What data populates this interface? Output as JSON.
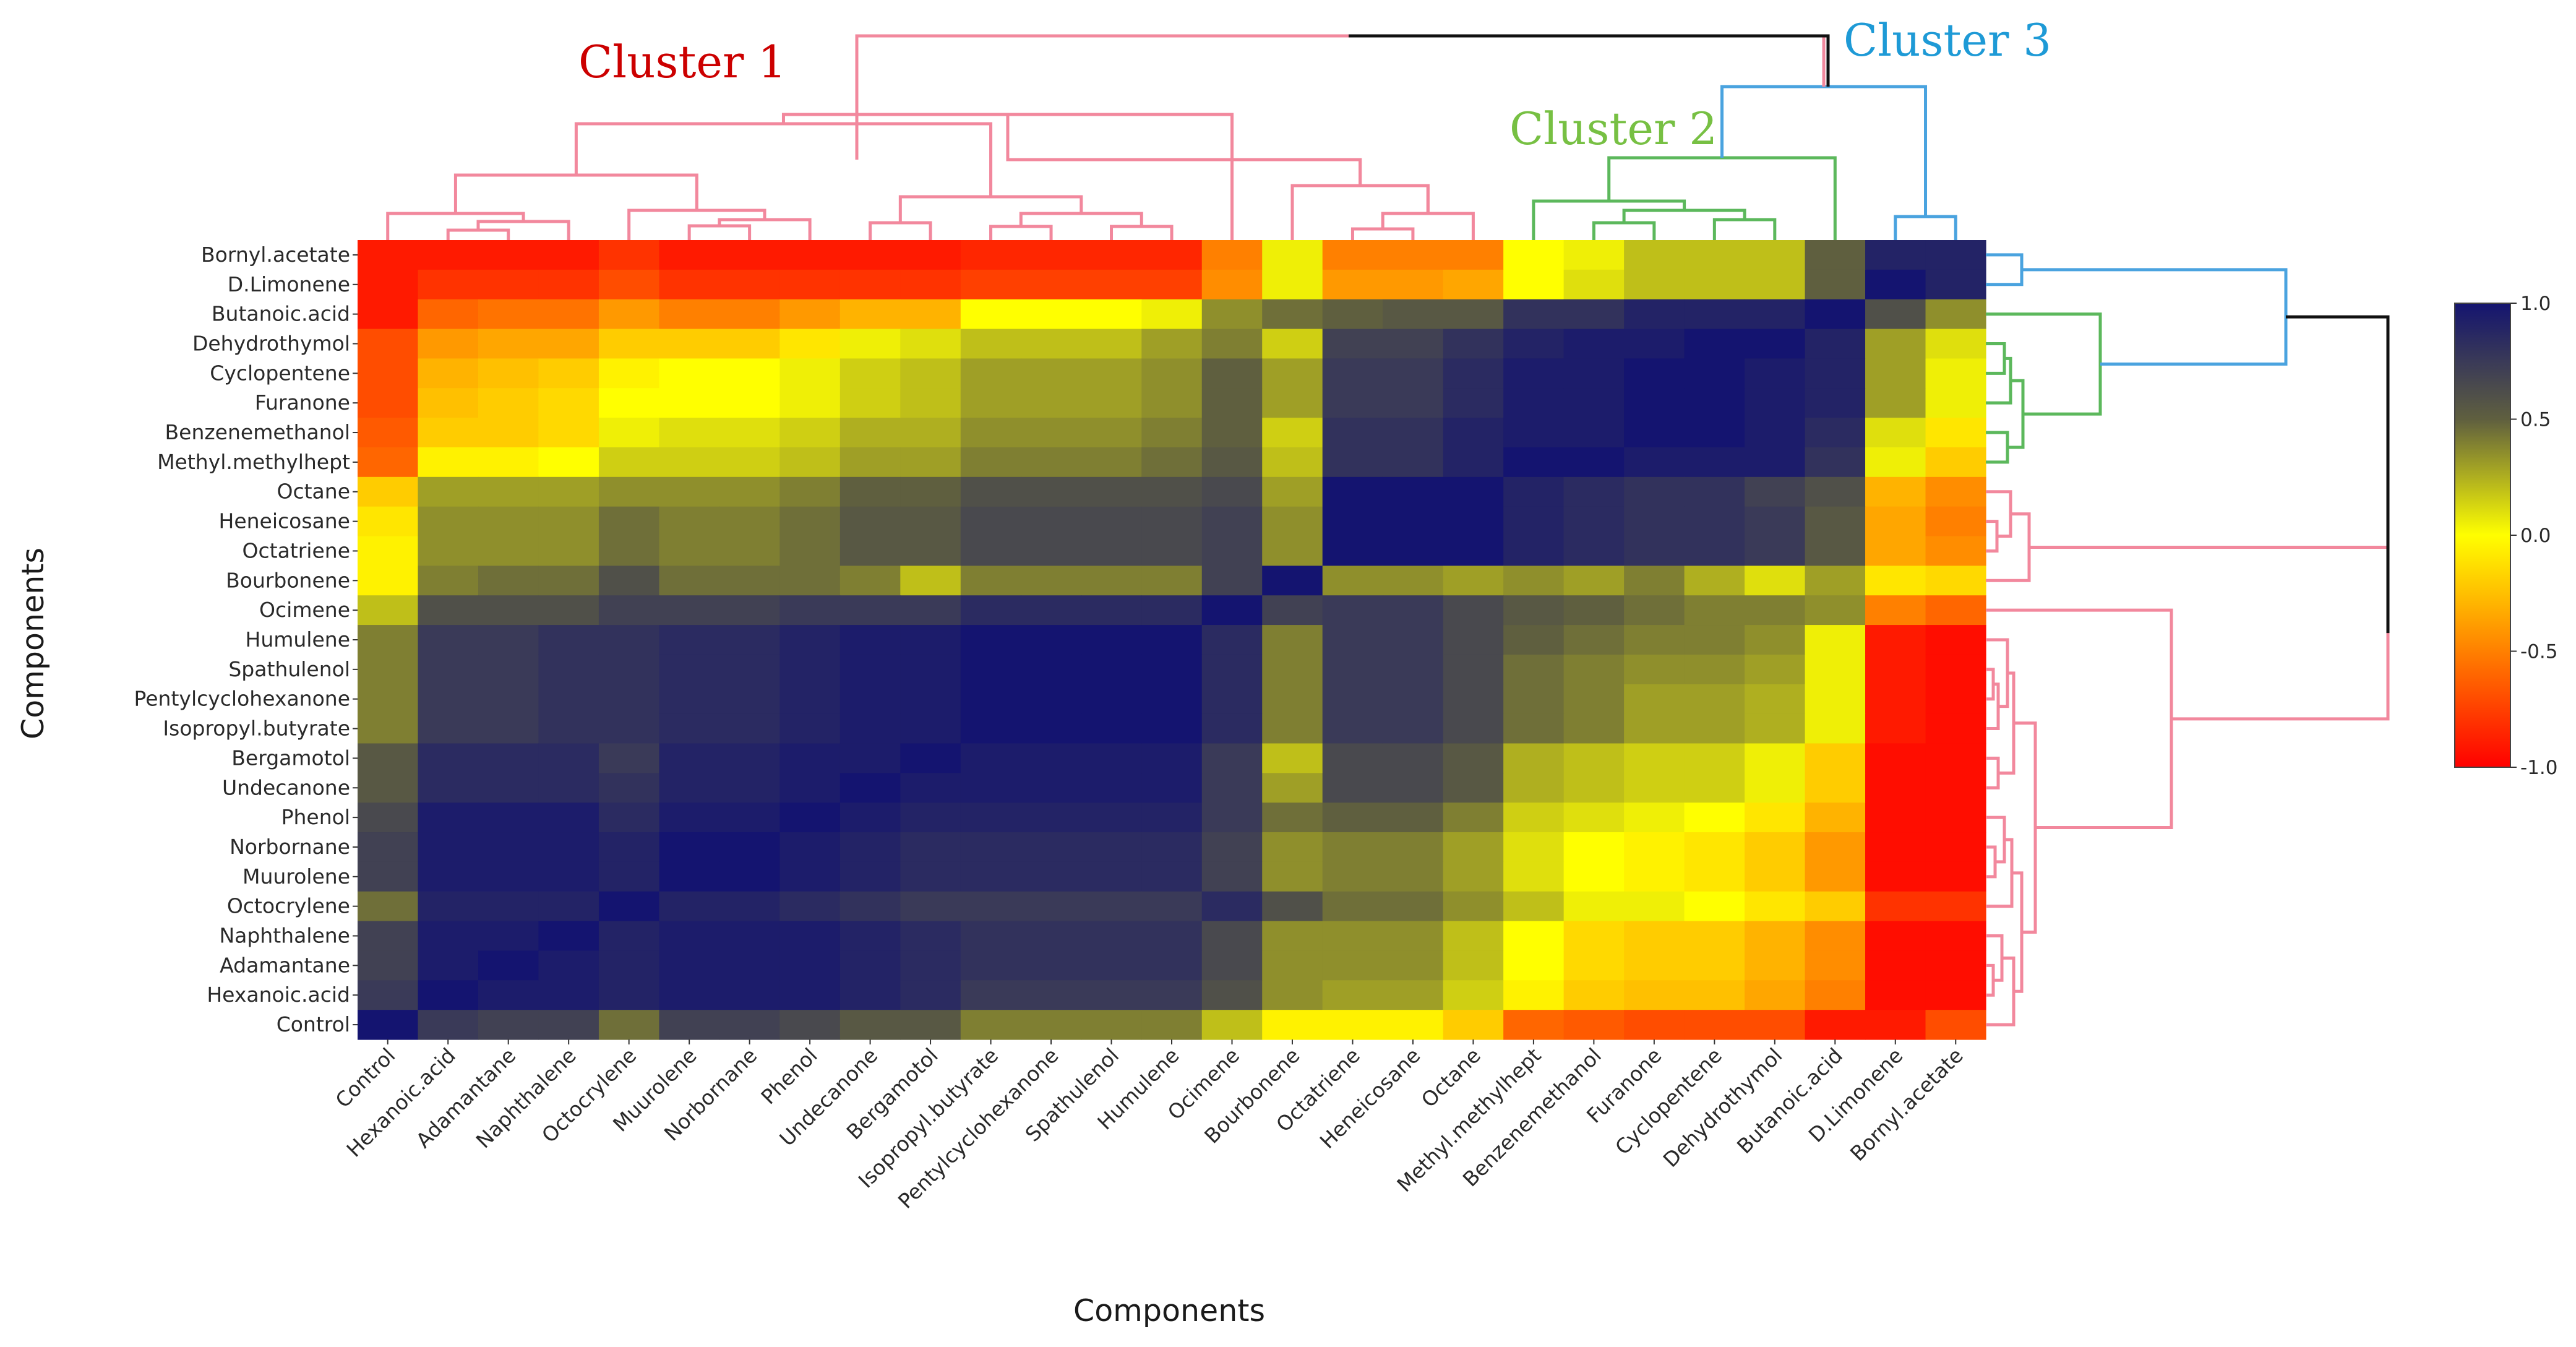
{
  "chart_data": {
    "type": "heatmap",
    "xlabel": "Components",
    "ylabel": "Components",
    "rows": [
      "Bornyl.acetate",
      "D.Limonene",
      "Butanoic.acid",
      "Dehydrothymol",
      "Cyclopentene",
      "Furanone",
      "Benzenemethanol",
      "Methyl.methylhept",
      "Octane",
      "Heneicosane",
      "Octatriene",
      "Bourbonene",
      "Ocimene",
      "Humulene",
      "Spathulenol",
      "Pentylcyclohexanone",
      "Isopropyl.butyrate",
      "Bergamotol",
      "Undecanone",
      "Phenol",
      "Norbornane",
      "Muurolene",
      "Octocrylene",
      "Naphthalene",
      "Adamantane",
      "Hexanoic.acid",
      "Control"
    ],
    "columns": [
      "Control",
      "Hexanoic.acid",
      "Adamantane",
      "Naphthalene",
      "Octocrylene",
      "Muurolene",
      "Norbornane",
      "Phenol",
      "Undecanone",
      "Bergamotol",
      "Isopropyl.butyrate",
      "Pentylcyclohexanone",
      "Spathulenol",
      "Humulene",
      "Ocimene",
      "Bourbonene",
      "Octatriene",
      "Heneicosane",
      "Octane",
      "Methyl.methylhept",
      "Benzenemethanol",
      "Furanone",
      "Cyclopentene",
      "Dehydrothymol",
      "Butanoic.acid",
      "D.Limonene",
      "Bornyl.acetate"
    ],
    "values": [
      [
        -0.9,
        -0.9,
        -0.9,
        -0.9,
        -0.8,
        -0.9,
        -0.9,
        -0.9,
        -0.9,
        -0.9,
        -0.85,
        -0.85,
        -0.85,
        -0.85,
        -0.5,
        0.05,
        -0.5,
        -0.5,
        -0.5,
        0.0,
        0.05,
        0.2,
        0.2,
        0.2,
        0.5,
        0.9,
        0.9
      ],
      [
        -0.9,
        -0.8,
        -0.8,
        -0.8,
        -0.7,
        -0.8,
        -0.8,
        -0.8,
        -0.8,
        -0.8,
        -0.75,
        -0.75,
        -0.75,
        -0.75,
        -0.45,
        0.05,
        -0.4,
        -0.4,
        -0.35,
        0.0,
        0.1,
        0.2,
        0.2,
        0.2,
        0.5,
        1.0,
        0.9
      ],
      [
        -0.9,
        -0.6,
        -0.55,
        -0.55,
        -0.4,
        -0.5,
        -0.5,
        -0.4,
        -0.3,
        -0.3,
        0.0,
        0.0,
        0.0,
        0.05,
        0.35,
        0.45,
        0.5,
        0.55,
        0.55,
        0.8,
        0.8,
        0.9,
        0.9,
        0.9,
        1.0,
        0.6,
        0.35
      ],
      [
        -0.7,
        -0.4,
        -0.35,
        -0.35,
        -0.2,
        -0.2,
        -0.2,
        -0.1,
        0.05,
        0.1,
        0.2,
        0.2,
        0.2,
        0.3,
        0.4,
        0.15,
        0.7,
        0.7,
        0.8,
        0.9,
        0.95,
        0.95,
        1.0,
        1.0,
        0.9,
        0.3,
        0.1
      ],
      [
        -0.7,
        -0.3,
        -0.25,
        -0.2,
        -0.05,
        0.0,
        0.0,
        0.05,
        0.15,
        0.2,
        0.3,
        0.3,
        0.3,
        0.35,
        0.5,
        0.3,
        0.75,
        0.75,
        0.85,
        0.95,
        0.95,
        1.0,
        1.0,
        0.95,
        0.9,
        0.3,
        0.05
      ],
      [
        -0.7,
        -0.25,
        -0.2,
        -0.15,
        0.0,
        0.0,
        0.0,
        0.05,
        0.15,
        0.2,
        0.3,
        0.3,
        0.3,
        0.35,
        0.5,
        0.3,
        0.75,
        0.75,
        0.85,
        0.95,
        0.95,
        1.0,
        1.0,
        0.95,
        0.9,
        0.3,
        0.05
      ],
      [
        -0.65,
        -0.2,
        -0.2,
        -0.15,
        0.05,
        0.1,
        0.1,
        0.15,
        0.25,
        0.25,
        0.35,
        0.35,
        0.35,
        0.4,
        0.5,
        0.15,
        0.8,
        0.8,
        0.9,
        0.95,
        0.95,
        1.0,
        1.0,
        0.95,
        0.85,
        0.1,
        -0.1
      ],
      [
        -0.6,
        -0.05,
        -0.05,
        0.0,
        0.15,
        0.15,
        0.15,
        0.2,
        0.3,
        0.3,
        0.4,
        0.4,
        0.4,
        0.45,
        0.55,
        0.2,
        0.8,
        0.8,
        0.9,
        1.0,
        1.0,
        0.95,
        0.95,
        0.95,
        0.8,
        0.05,
        -0.2
      ],
      [
        -0.2,
        0.3,
        0.3,
        0.3,
        0.35,
        0.35,
        0.35,
        0.4,
        0.5,
        0.5,
        0.6,
        0.6,
        0.6,
        0.6,
        0.65,
        0.3,
        1.0,
        1.0,
        1.0,
        0.9,
        0.85,
        0.8,
        0.8,
        0.7,
        0.6,
        -0.3,
        -0.45
      ],
      [
        -0.1,
        0.35,
        0.35,
        0.35,
        0.45,
        0.4,
        0.4,
        0.45,
        0.55,
        0.55,
        0.65,
        0.65,
        0.65,
        0.65,
        0.7,
        0.35,
        1.0,
        1.0,
        1.0,
        0.9,
        0.85,
        0.8,
        0.8,
        0.75,
        0.55,
        -0.35,
        -0.5
      ],
      [
        -0.05,
        0.35,
        0.35,
        0.35,
        0.45,
        0.4,
        0.4,
        0.45,
        0.55,
        0.55,
        0.65,
        0.65,
        0.65,
        0.65,
        0.7,
        0.35,
        1.0,
        1.0,
        1.0,
        0.9,
        0.85,
        0.8,
        0.8,
        0.75,
        0.55,
        -0.35,
        -0.45
      ],
      [
        -0.05,
        0.4,
        0.45,
        0.45,
        0.6,
        0.45,
        0.45,
        0.45,
        0.4,
        0.2,
        0.4,
        0.4,
        0.4,
        0.4,
        0.7,
        1.0,
        0.35,
        0.35,
        0.3,
        0.35,
        0.3,
        0.4,
        0.25,
        0.1,
        0.3,
        -0.1,
        -0.15
      ],
      [
        0.2,
        0.6,
        0.6,
        0.6,
        0.7,
        0.7,
        0.7,
        0.75,
        0.75,
        0.75,
        0.85,
        0.85,
        0.85,
        0.85,
        1.0,
        0.7,
        0.75,
        0.75,
        0.65,
        0.55,
        0.5,
        0.45,
        0.4,
        0.4,
        0.35,
        -0.5,
        -0.6
      ],
      [
        0.4,
        0.75,
        0.75,
        0.8,
        0.8,
        0.85,
        0.85,
        0.9,
        0.95,
        0.95,
        1.0,
        1.0,
        1.0,
        1.0,
        0.85,
        0.4,
        0.75,
        0.75,
        0.65,
        0.5,
        0.45,
        0.4,
        0.4,
        0.35,
        0.05,
        -0.9,
        -0.95
      ],
      [
        0.4,
        0.75,
        0.75,
        0.8,
        0.8,
        0.85,
        0.85,
        0.9,
        0.95,
        0.95,
        1.0,
        1.0,
        1.0,
        1.0,
        0.85,
        0.4,
        0.75,
        0.75,
        0.65,
        0.45,
        0.4,
        0.35,
        0.35,
        0.3,
        0.05,
        -0.9,
        -0.95
      ],
      [
        0.4,
        0.75,
        0.75,
        0.8,
        0.8,
        0.85,
        0.85,
        0.9,
        0.95,
        0.95,
        1.0,
        1.0,
        1.0,
        1.0,
        0.85,
        0.4,
        0.75,
        0.75,
        0.65,
        0.45,
        0.4,
        0.3,
        0.3,
        0.25,
        0.05,
        -0.9,
        -0.95
      ],
      [
        0.4,
        0.75,
        0.75,
        0.8,
        0.8,
        0.85,
        0.85,
        0.9,
        0.95,
        0.95,
        1.0,
        1.0,
        1.0,
        1.0,
        0.85,
        0.4,
        0.75,
        0.75,
        0.65,
        0.45,
        0.4,
        0.3,
        0.3,
        0.25,
        0.05,
        -0.9,
        -0.95
      ],
      [
        0.55,
        0.85,
        0.85,
        0.85,
        0.75,
        0.9,
        0.9,
        0.95,
        0.95,
        1.0,
        0.95,
        0.95,
        0.95,
        0.95,
        0.75,
        0.2,
        0.65,
        0.65,
        0.55,
        0.25,
        0.2,
        0.15,
        0.15,
        0.05,
        -0.2,
        -0.95,
        -0.95
      ],
      [
        0.55,
        0.85,
        0.85,
        0.85,
        0.8,
        0.9,
        0.9,
        0.95,
        1.0,
        0.95,
        0.95,
        0.95,
        0.95,
        0.95,
        0.75,
        0.3,
        0.65,
        0.65,
        0.55,
        0.25,
        0.2,
        0.15,
        0.15,
        0.05,
        -0.2,
        -0.95,
        -0.95
      ],
      [
        0.65,
        0.95,
        0.95,
        0.95,
        0.85,
        0.95,
        0.95,
        1.0,
        0.95,
        0.9,
        0.9,
        0.9,
        0.9,
        0.9,
        0.75,
        0.45,
        0.5,
        0.5,
        0.4,
        0.15,
        0.1,
        0.05,
        0.0,
        -0.1,
        -0.3,
        -0.95,
        -0.95
      ],
      [
        0.7,
        0.95,
        0.95,
        0.95,
        0.9,
        1.0,
        1.0,
        0.95,
        0.9,
        0.85,
        0.85,
        0.85,
        0.85,
        0.85,
        0.7,
        0.35,
        0.4,
        0.4,
        0.3,
        0.1,
        0.0,
        -0.05,
        -0.1,
        -0.2,
        -0.4,
        -0.95,
        -0.95
      ],
      [
        0.7,
        0.95,
        0.95,
        0.95,
        0.9,
        1.0,
        1.0,
        0.95,
        0.9,
        0.85,
        0.85,
        0.85,
        0.85,
        0.85,
        0.7,
        0.35,
        0.4,
        0.4,
        0.3,
        0.1,
        0.0,
        -0.05,
        -0.1,
        -0.2,
        -0.4,
        -0.95,
        -0.95
      ],
      [
        0.45,
        0.9,
        0.9,
        0.9,
        1.0,
        0.9,
        0.9,
        0.85,
        0.8,
        0.75,
        0.75,
        0.75,
        0.75,
        0.75,
        0.85,
        0.6,
        0.45,
        0.45,
        0.35,
        0.2,
        0.05,
        0.05,
        0.0,
        -0.1,
        -0.2,
        -0.8,
        -0.8
      ],
      [
        0.7,
        0.95,
        0.95,
        1.0,
        0.9,
        0.95,
        0.95,
        0.95,
        0.9,
        0.85,
        0.8,
        0.8,
        0.8,
        0.8,
        0.65,
        0.35,
        0.35,
        0.35,
        0.2,
        0.0,
        -0.15,
        -0.2,
        -0.2,
        -0.3,
        -0.45,
        -0.95,
        -0.95
      ],
      [
        0.7,
        0.95,
        1.0,
        0.95,
        0.9,
        0.95,
        0.95,
        0.95,
        0.9,
        0.85,
        0.8,
        0.8,
        0.8,
        0.8,
        0.65,
        0.35,
        0.35,
        0.35,
        0.2,
        0.0,
        -0.15,
        -0.2,
        -0.2,
        -0.3,
        -0.45,
        -0.95,
        -0.95
      ],
      [
        0.75,
        1.0,
        0.95,
        0.95,
        0.9,
        0.95,
        0.95,
        0.95,
        0.9,
        0.85,
        0.75,
        0.75,
        0.75,
        0.75,
        0.6,
        0.35,
        0.3,
        0.3,
        0.15,
        -0.05,
        -0.2,
        -0.25,
        -0.25,
        -0.35,
        -0.5,
        -0.95,
        -0.95
      ],
      [
        1.0,
        0.75,
        0.7,
        0.7,
        0.45,
        0.7,
        0.7,
        0.65,
        0.55,
        0.55,
        0.4,
        0.4,
        0.4,
        0.4,
        0.2,
        -0.05,
        -0.05,
        -0.05,
        -0.2,
        -0.6,
        -0.65,
        -0.7,
        -0.7,
        -0.7,
        -0.9,
        -0.9,
        -0.7
      ]
    ],
    "colorscale": {
      "min": -1.0,
      "max": 1.0,
      "ticks": [
        "1.0",
        "0.5",
        "0.0",
        "-0.5",
        "-1.0"
      ],
      "stops": [
        {
          "v": -1.0,
          "color": "#ff0000"
        },
        {
          "v": -0.5,
          "color": "#ff8000"
        },
        {
          "v": 0.0,
          "color": "#ffff00"
        },
        {
          "v": 0.5,
          "color": "#5f5f3f"
        },
        {
          "v": 1.0,
          "color": "#141470"
        }
      ]
    },
    "clusters": [
      {
        "label": "Cluster 1",
        "color": "#cc0000"
      },
      {
        "label": "Cluster 2",
        "color": "#77c043"
      },
      {
        "label": "Cluster 3",
        "color": "#1e9ad6"
      }
    ],
    "dendrogram_colors": {
      "cluster1": "#f2889d",
      "cluster2": "#5cb85c",
      "cluster3": "#4aa3df",
      "root": "#111111"
    }
  }
}
